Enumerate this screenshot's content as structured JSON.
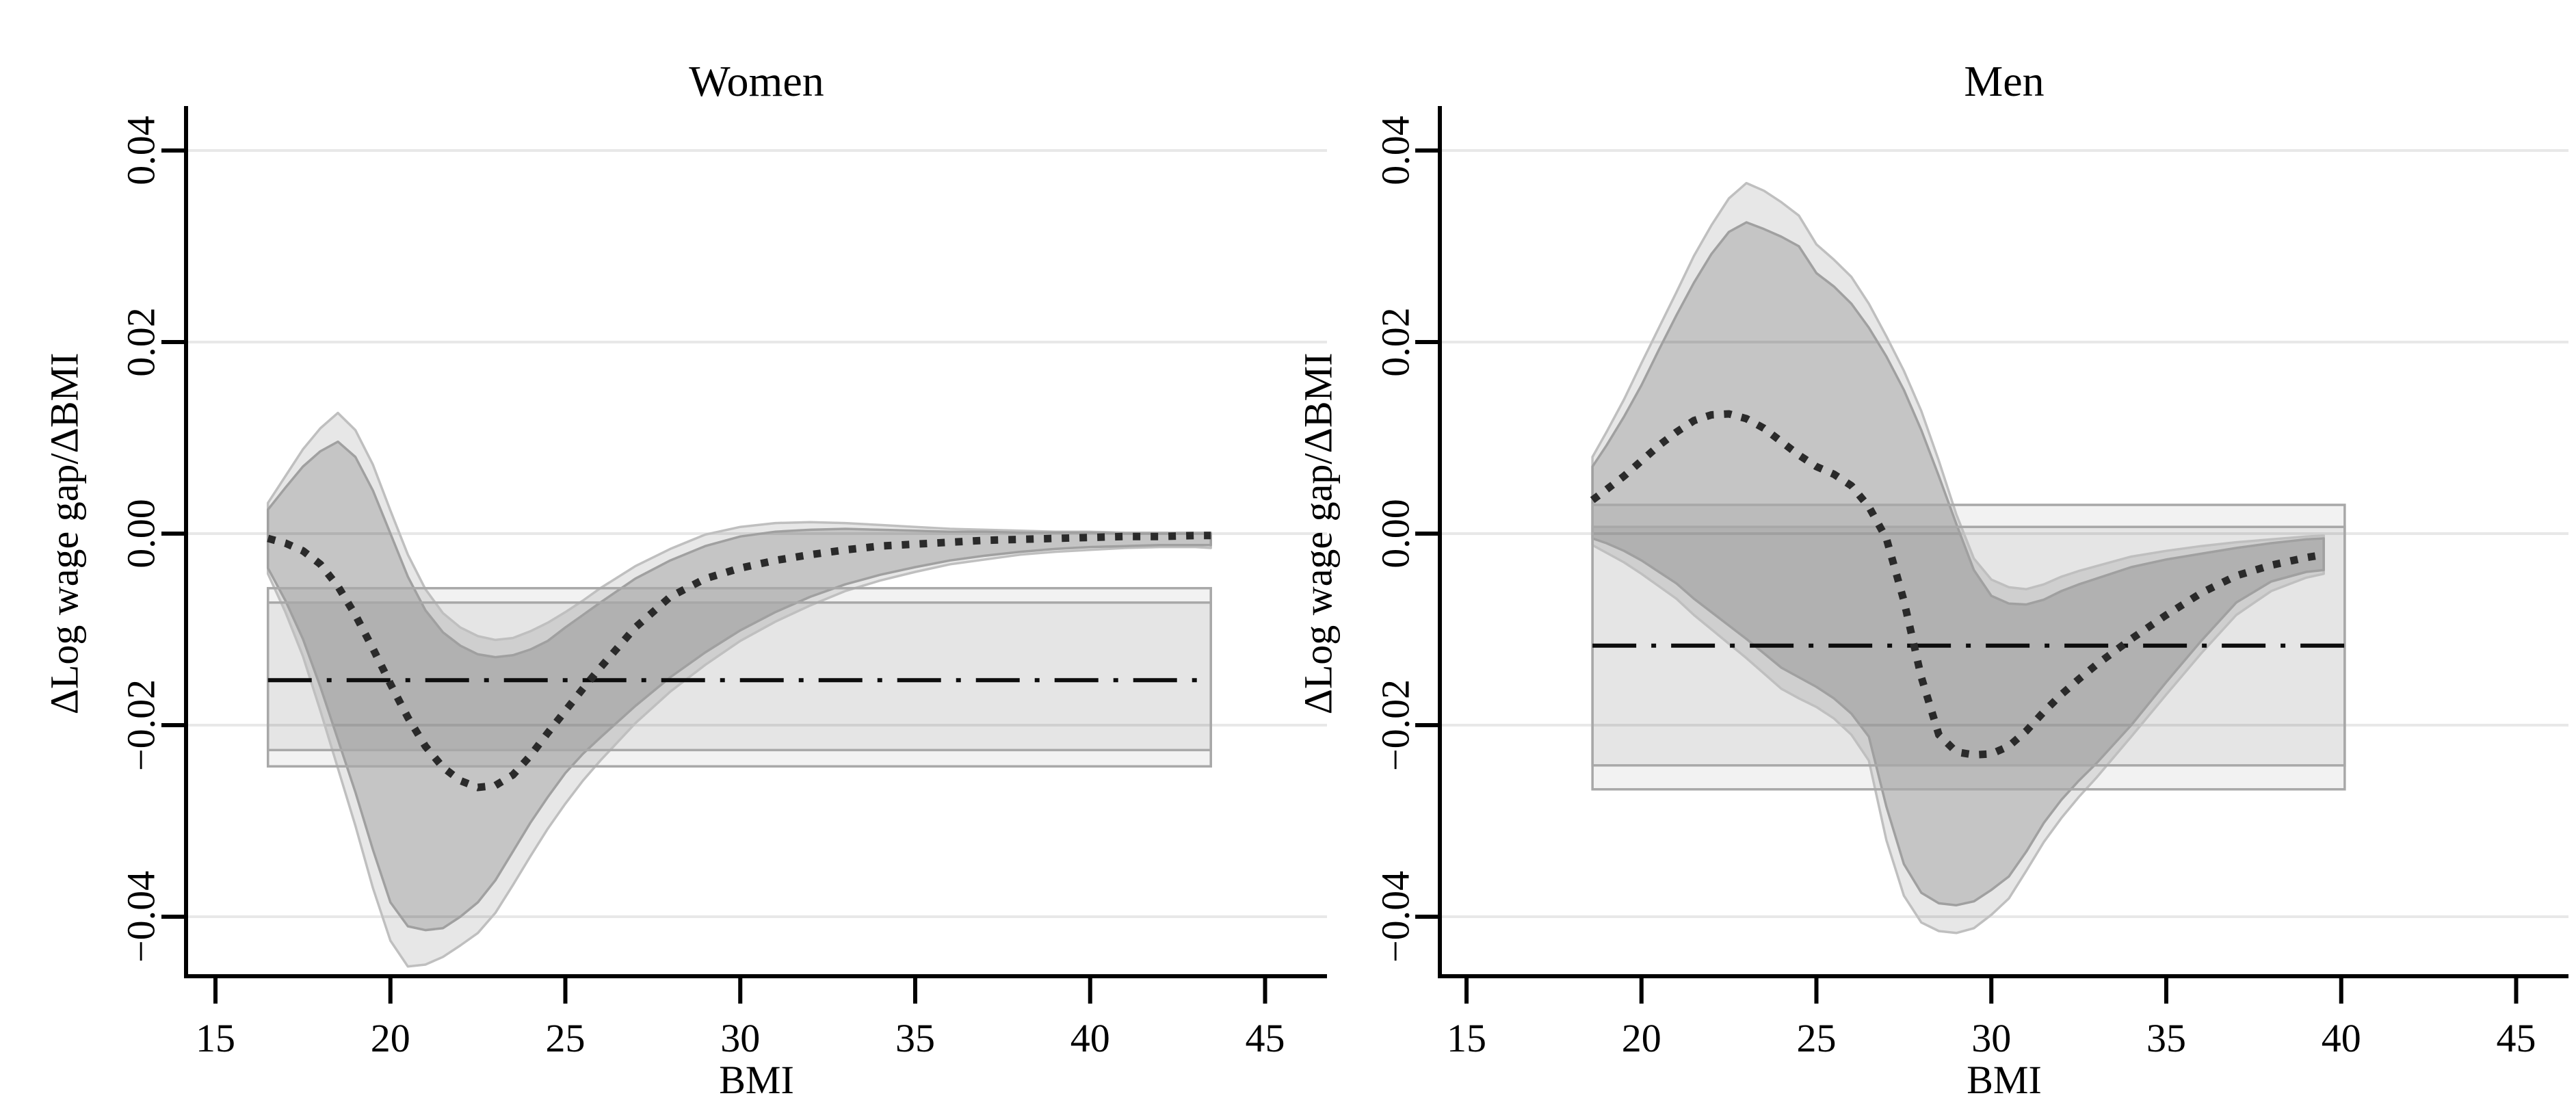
{
  "figure": {
    "background": "#ffffff",
    "colors": {
      "gridline": "#e8e8e8",
      "axis": "#000000",
      "band_outer_fill": "rgba(0,0,0,0.095)",
      "band_outer_stroke": "#bfbfbf",
      "band_inner_fill": "rgba(0,0,0,0.145)",
      "band_inner_stroke": "#a0a0a0",
      "box_fill": "rgba(0,0,0,0.052)",
      "box_stroke": "#a8a8a8",
      "dotted_line": "#2a2a2a",
      "dashdot_line": "#0d0d0d"
    },
    "y_axis": {
      "label": "ΔLog wage gap/ΔBMI",
      "ticks": [
        {
          "value": 0.04,
          "label": "0.04"
        },
        {
          "value": 0.02,
          "label": "0.02"
        },
        {
          "value": 0.0,
          "label": "0.00"
        },
        {
          "value": -0.02,
          "label": "−0.02"
        },
        {
          "value": -0.04,
          "label": "−0.04"
        }
      ]
    },
    "x_axis": {
      "label": "BMI",
      "ticks": [
        15,
        20,
        25,
        30,
        35,
        40,
        45
      ]
    }
  },
  "chart_data": [
    {
      "type": "area",
      "title": "Women",
      "xlabel": "BMI",
      "ylabel": "ΔLog wage gap/ΔBMI",
      "x_range": [
        15,
        45
      ],
      "y_range": [
        -0.048,
        0.045
      ],
      "grid": true,
      "bmi": [
        16.5,
        17,
        17.5,
        18,
        18.5,
        19,
        19.5,
        20,
        20.5,
        21,
        21.5,
        22,
        22.5,
        23,
        23.5,
        24,
        24.5,
        25,
        25.5,
        26,
        27,
        28,
        29,
        30,
        31,
        32,
        33,
        34,
        35,
        36,
        37,
        38,
        39,
        40,
        41,
        42,
        43,
        43.45
      ],
      "series": [
        {
          "name": "wage-gap-slope-dotted",
          "values": [
            -0.0005,
            -0.001,
            -0.0018,
            -0.0032,
            -0.0055,
            -0.0085,
            -0.012,
            -0.0157,
            -0.0192,
            -0.0222,
            -0.0244,
            -0.0258,
            -0.0265,
            -0.0263,
            -0.0252,
            -0.0232,
            -0.0208,
            -0.0185,
            -0.0162,
            -0.014,
            -0.0098,
            -0.0066,
            -0.0047,
            -0.0036,
            -0.0028,
            -0.0022,
            -0.0017,
            -0.0013,
            -0.0011,
            -0.0009,
            -0.0007,
            -0.0006,
            -0.0005,
            -0.0004,
            -0.0003,
            -0.0003,
            -0.0002,
            -0.0002
          ]
        },
        {
          "name": "inner-ci-upper",
          "values": [
            0.0025,
            0.0048,
            0.007,
            0.0086,
            0.0096,
            0.008,
            0.0045,
            0.0,
            -0.0045,
            -0.008,
            -0.0103,
            -0.0117,
            -0.0126,
            -0.0129,
            -0.0127,
            -0.0121,
            -0.0112,
            -0.0098,
            -0.0085,
            -0.0072,
            -0.0047,
            -0.0028,
            -0.0013,
            -0.0003,
            0.0002,
            0.0004,
            0.0005,
            0.0004,
            0.0003,
            0.0002,
            0.0002,
            0.0001,
            0.0001,
            0.0001,
            0.0,
            0.0,
            0.0,
            0.0
          ]
        },
        {
          "name": "inner-ci-lower",
          "values": [
            -0.0036,
            -0.007,
            -0.011,
            -0.016,
            -0.0215,
            -0.027,
            -0.033,
            -0.0385,
            -0.041,
            -0.0414,
            -0.0412,
            -0.04,
            -0.0385,
            -0.0362,
            -0.0332,
            -0.0302,
            -0.0275,
            -0.025,
            -0.023,
            -0.0213,
            -0.018,
            -0.015,
            -0.0124,
            -0.0101,
            -0.0082,
            -0.0066,
            -0.0053,
            -0.0043,
            -0.0035,
            -0.0028,
            -0.0023,
            -0.0019,
            -0.0016,
            -0.0014,
            -0.0013,
            -0.0012,
            -0.0012,
            -0.0012
          ]
        },
        {
          "name": "outer-ci-upper",
          "values": [
            0.0032,
            0.006,
            0.0088,
            0.011,
            0.0126,
            0.0108,
            0.0072,
            0.0024,
            -0.0022,
            -0.0058,
            -0.0083,
            -0.0098,
            -0.0107,
            -0.0111,
            -0.0109,
            -0.0102,
            -0.0093,
            -0.0082,
            -0.007,
            -0.0057,
            -0.0034,
            -0.0016,
            -0.0001,
            0.0007,
            0.0011,
            0.0012,
            0.0011,
            0.0009,
            0.0007,
            0.0005,
            0.0004,
            0.0003,
            0.0002,
            0.0002,
            0.0001,
            0.0001,
            0.0001,
            0.0001
          ]
        },
        {
          "name": "outer-ci-lower",
          "values": [
            -0.0042,
            -0.0082,
            -0.0128,
            -0.0185,
            -0.0245,
            -0.0305,
            -0.037,
            -0.0425,
            -0.0452,
            -0.045,
            -0.0442,
            -0.043,
            -0.0417,
            -0.0396,
            -0.0367,
            -0.0337,
            -0.0308,
            -0.0282,
            -0.0258,
            -0.0237,
            -0.0198,
            -0.0165,
            -0.0137,
            -0.0112,
            -0.0092,
            -0.0075,
            -0.006,
            -0.0049,
            -0.004,
            -0.0032,
            -0.0027,
            -0.0022,
            -0.0019,
            -0.0017,
            -0.0015,
            -0.0014,
            -0.0014,
            -0.0015
          ]
        }
      ],
      "invariant_estimate": {
        "reference_line": -0.0153,
        "box_inner": {
          "x0": 16.5,
          "x1": 43.45,
          "top": -0.0072,
          "bottom": -0.0226
        },
        "box_outer": {
          "x0": 16.5,
          "x1": 43.45,
          "top": -0.0057,
          "bottom": -0.0243
        }
      }
    },
    {
      "type": "area",
      "title": "Men",
      "xlabel": "BMI",
      "ylabel": "ΔLog wage gap/ΔBMI",
      "x_range": [
        15,
        45
      ],
      "y_range": [
        -0.048,
        0.045
      ],
      "grid": true,
      "bmi": [
        18.6,
        19,
        19.5,
        20,
        20.5,
        21,
        21.5,
        22,
        22.5,
        23,
        23.5,
        24,
        24.5,
        25,
        25.5,
        26,
        26.5,
        27,
        27.5,
        28,
        28.5,
        29,
        29.5,
        30,
        30.5,
        31,
        31.5,
        32,
        32.5,
        33,
        34,
        35,
        36,
        37,
        38,
        39,
        39.5
      ],
      "series": [
        {
          "name": "wage-gap-slope-dotted",
          "values": [
            0.0035,
            0.0046,
            0.006,
            0.0076,
            0.0092,
            0.0106,
            0.0118,
            0.0124,
            0.0125,
            0.012,
            0.011,
            0.0096,
            0.0082,
            0.007,
            0.0062,
            0.005,
            0.0028,
            -0.0005,
            -0.007,
            -0.015,
            -0.021,
            -0.0228,
            -0.0231,
            -0.023,
            -0.0222,
            -0.0206,
            -0.0186,
            -0.0168,
            -0.0152,
            -0.0137,
            -0.011,
            -0.0085,
            -0.0062,
            -0.0044,
            -0.0033,
            -0.0025,
            -0.0022
          ]
        },
        {
          "name": "inner-ci-upper",
          "values": [
            0.007,
            0.0092,
            0.0122,
            0.0155,
            0.0192,
            0.0228,
            0.0262,
            0.0292,
            0.0315,
            0.0325,
            0.0318,
            0.031,
            0.03,
            0.0272,
            0.0258,
            0.024,
            0.0215,
            0.0185,
            0.015,
            0.0108,
            0.006,
            0.001,
            -0.0038,
            -0.0065,
            -0.0073,
            -0.0074,
            -0.0069,
            -0.006,
            -0.0053,
            -0.0047,
            -0.0035,
            -0.0027,
            -0.0021,
            -0.0015,
            -0.001,
            -0.0006,
            -0.0005
          ]
        },
        {
          "name": "inner-ci-lower",
          "values": [
            -0.0005,
            -0.001,
            -0.0018,
            -0.0028,
            -0.004,
            -0.0052,
            -0.0068,
            -0.0082,
            -0.0096,
            -0.011,
            -0.0125,
            -0.014,
            -0.015,
            -0.016,
            -0.0172,
            -0.0188,
            -0.0212,
            -0.0285,
            -0.0345,
            -0.0375,
            -0.0386,
            -0.0388,
            -0.0384,
            -0.0372,
            -0.0358,
            -0.0332,
            -0.0302,
            -0.0278,
            -0.0258,
            -0.024,
            -0.02,
            -0.0155,
            -0.0112,
            -0.0072,
            -0.005,
            -0.004,
            -0.0038
          ]
        },
        {
          "name": "outer-ci-upper",
          "values": [
            0.008,
            0.0106,
            0.014,
            0.0178,
            0.0215,
            0.0252,
            0.029,
            0.0322,
            0.035,
            0.0366,
            0.0358,
            0.0346,
            0.0332,
            0.0302,
            0.0286,
            0.0268,
            0.024,
            0.0206,
            0.017,
            0.0128,
            0.0076,
            0.002,
            -0.0026,
            -0.0048,
            -0.0056,
            -0.0058,
            -0.0053,
            -0.0045,
            -0.0039,
            -0.0034,
            -0.0024,
            -0.0018,
            -0.0013,
            -0.0009,
            -0.0006,
            -0.0003,
            -0.0002
          ]
        },
        {
          "name": "outer-ci-lower",
          "values": [
            -0.0012,
            -0.002,
            -0.003,
            -0.0042,
            -0.0055,
            -0.0068,
            -0.0085,
            -0.01,
            -0.0115,
            -0.013,
            -0.0146,
            -0.0162,
            -0.0172,
            -0.0181,
            -0.0193,
            -0.021,
            -0.0237,
            -0.032,
            -0.0378,
            -0.0406,
            -0.0415,
            -0.0417,
            -0.0412,
            -0.0398,
            -0.0381,
            -0.0352,
            -0.0322,
            -0.0297,
            -0.0275,
            -0.0255,
            -0.0212,
            -0.0168,
            -0.0125,
            -0.0085,
            -0.006,
            -0.0046,
            -0.0042
          ]
        }
      ],
      "invariant_estimate": {
        "reference_line": -0.0117,
        "box_inner": {
          "x0": 18.6,
          "x1": 40.1,
          "top": 0.0007,
          "bottom": -0.0242
        },
        "box_outer": {
          "x0": 18.6,
          "x1": 40.1,
          "top": 0.003,
          "bottom": -0.0267
        }
      }
    }
  ]
}
